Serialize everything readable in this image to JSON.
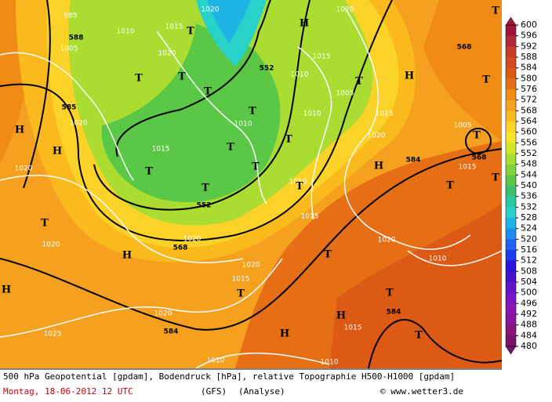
{
  "map": {
    "height_labels": [
      "588",
      "585",
      "552",
      "552",
      "568",
      "568",
      "584",
      "584",
      "584",
      "568"
    ],
    "pressure_labels": [
      "985",
      "1020",
      "1020",
      "1015",
      "1010",
      "1005",
      "1020",
      "1010",
      "1015",
      "1005",
      "1015",
      "1020",
      "1010",
      "1010",
      "1020",
      "1005",
      "1015",
      "1020",
      "1015",
      "1010",
      "1015",
      "1020",
      "1020",
      "1020",
      "1010",
      "1020",
      "1015",
      "1020",
      "1025",
      "1015",
      "1010",
      "1010"
    ],
    "highs": [
      "H",
      "H",
      "H",
      "H",
      "H",
      "H",
      "H",
      "H",
      "H"
    ],
    "lows": [
      "T",
      "T",
      "T",
      "T",
      "T",
      "T",
      "T",
      "T",
      "T",
      "T",
      "T",
      "T",
      "T",
      "T",
      "T",
      "T",
      "T",
      "T",
      "T",
      "T",
      "T",
      "T"
    ]
  },
  "colorbar": {
    "labels": [
      600,
      596,
      592,
      588,
      584,
      580,
      576,
      572,
      568,
      564,
      560,
      556,
      552,
      548,
      544,
      540,
      536,
      532,
      528,
      524,
      520,
      516,
      512,
      508,
      504,
      500,
      496,
      492,
      488,
      484,
      480
    ],
    "colors": [
      "#a0143c",
      "#b4283c",
      "#c83c28",
      "#d24b1e",
      "#dc5a14",
      "#e66e14",
      "#f08c14",
      "#f5a01e",
      "#faba1e",
      "#fad228",
      "#f5e628",
      "#d2e628",
      "#aadc32",
      "#82d23c",
      "#5ac846",
      "#3cbe6e",
      "#28c8a0",
      "#28d2c8",
      "#1eb4e6",
      "#1e8cf0",
      "#1e64f0",
      "#1e3cf0",
      "#2814dc",
      "#4614c8",
      "#6414c8",
      "#7814c8",
      "#8c14b4",
      "#8c14a0",
      "#8c1478",
      "#78146e"
    ]
  },
  "caption": {
    "line1": "500 hPa Geopotential [gpdam], Bodendruck [hPa], relative Topographie H500-H1000 [gpdam]",
    "date": "Montag, 18-06-2012  12 UTC",
    "model": "(GFS)",
    "run": "(Analyse)",
    "credit": "© www.wetter3.de"
  }
}
